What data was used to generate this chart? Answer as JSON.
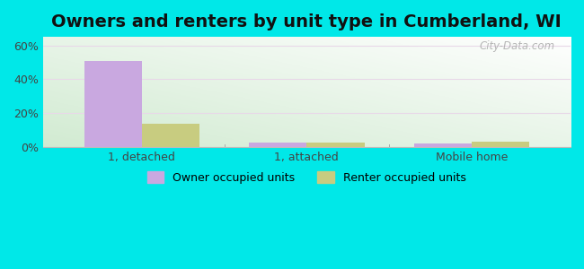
{
  "title": "Owners and renters by unit type in Cumberland, WI",
  "categories": [
    "1, detached",
    "1, attached",
    "Mobile home"
  ],
  "owner_values": [
    51,
    3,
    2
  ],
  "renter_values": [
    14,
    2.5,
    3.5
  ],
  "owner_color": "#c9a8e0",
  "renter_color": "#c8cc80",
  "background_color": "#00e8e8",
  "plot_bg_color": "#deecd8",
  "ylim": [
    0,
    65
  ],
  "yticks": [
    0,
    20,
    40,
    60
  ],
  "ytick_labels": [
    "0%",
    "20%",
    "40%",
    "60%"
  ],
  "bar_width": 0.35,
  "title_fontsize": 14,
  "legend_label_owner": "Owner occupied units",
  "legend_label_renter": "Renter occupied units",
  "watermark": "City-Data.com",
  "grid_color": "#e0d8e8",
  "spine_color": "#bbbbbb"
}
